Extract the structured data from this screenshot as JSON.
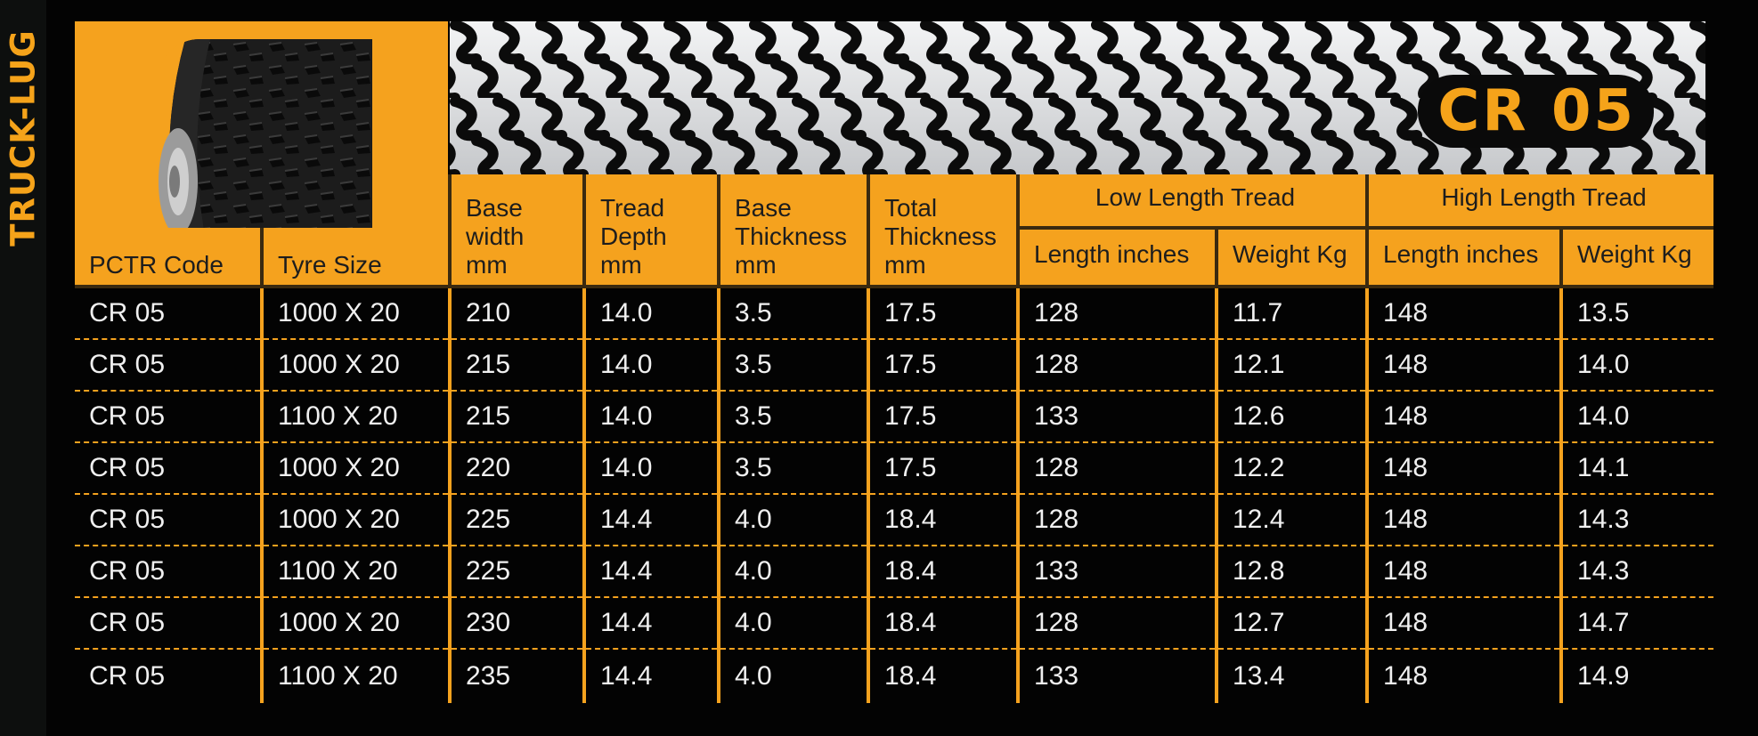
{
  "side_label": "TRUCK-LUG",
  "model_badge": "CR 05",
  "header": {
    "pctr_code": "PCTR Code",
    "tyre_size": "Tyre Size",
    "base_width": [
      "Base",
      "width",
      "mm"
    ],
    "tread_depth": [
      "Tread",
      "Depth",
      "mm"
    ],
    "base_thickness": [
      "Base",
      "Thickness",
      "mm"
    ],
    "total_thickness": [
      "Total",
      "Thickness",
      "mm"
    ],
    "low_group": "Low Length Tread",
    "high_group": "High Length Tread",
    "length_inches": "Length inches",
    "weight_kg": "Weight Kg"
  },
  "rows": [
    [
      "CR 05",
      "1000 X 20",
      "210",
      "14.0",
      "3.5",
      "17.5",
      "128",
      "11.7",
      "148",
      "13.5"
    ],
    [
      "CR 05",
      "1000 X 20",
      "215",
      "14.0",
      "3.5",
      "17.5",
      "128",
      "12.1",
      "148",
      "14.0"
    ],
    [
      "CR 05",
      "1100 X 20",
      "215",
      "14.0",
      "3.5",
      "17.5",
      "133",
      "12.6",
      "148",
      "14.0"
    ],
    [
      "CR 05",
      "1000 X 20",
      "220",
      "14.0",
      "3.5",
      "17.5",
      "128",
      "12.2",
      "148",
      "14.1"
    ],
    [
      "CR 05",
      "1000 X 20",
      "225",
      "14.4",
      "4.0",
      "18.4",
      "128",
      "12.4",
      "148",
      "14.3"
    ],
    [
      "CR 05",
      "1100 X 20",
      "225",
      "14.4",
      "4.0",
      "18.4",
      "133",
      "12.8",
      "148",
      "14.3"
    ],
    [
      "CR 05",
      "1000 X 20",
      "230",
      "14.4",
      "4.0",
      "18.4",
      "128",
      "12.7",
      "148",
      "14.7"
    ],
    [
      "CR 05",
      "1100 X 20",
      "235",
      "14.4",
      "4.0",
      "18.4",
      "133",
      "13.4",
      "148",
      "14.9"
    ]
  ],
  "colors": {
    "accent": "#f5a21e",
    "background": "#030303",
    "text": "#f0f0f0"
  },
  "icons": {
    "tyre": "tyre-photo",
    "tread_pattern": "tread-pattern"
  }
}
